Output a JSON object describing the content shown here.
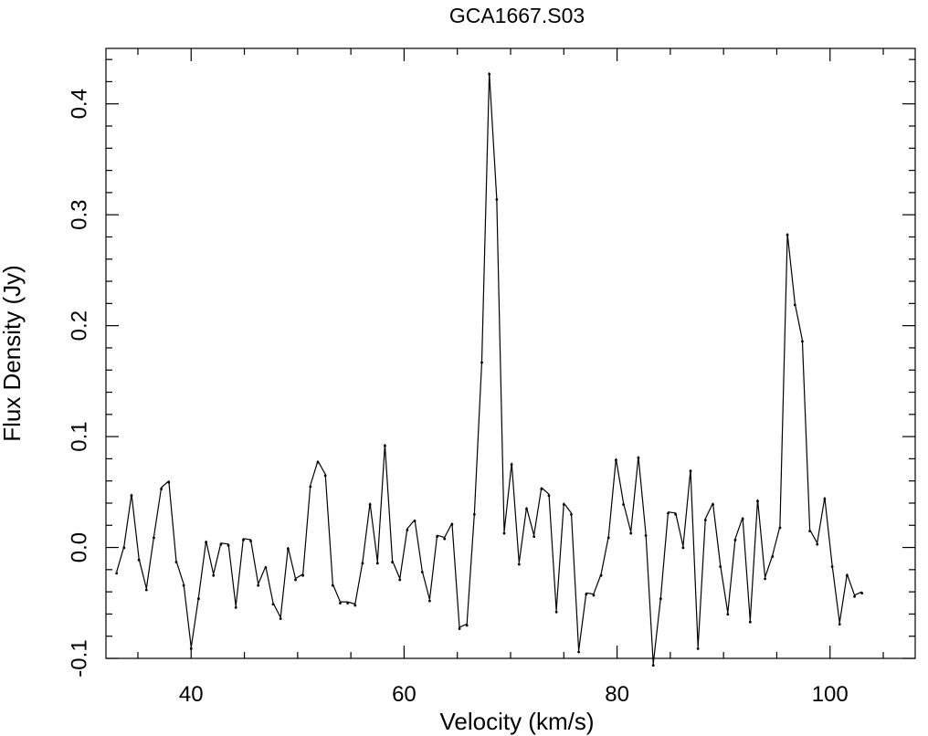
{
  "chart_data": {
    "type": "line",
    "title": "GCA1667.S03",
    "xlabel": "Velocity (km/s)",
    "ylabel": "Flux Density (Jy)",
    "xlim": [
      32,
      108
    ],
    "ylim": [
      -0.1,
      0.45
    ],
    "x_ticks": [
      40,
      60,
      80,
      100
    ],
    "x_tick_labels": [
      "40",
      "60",
      "80",
      "100"
    ],
    "y_ticks": [
      -0.1,
      0.0,
      0.1,
      0.2,
      0.3,
      0.4
    ],
    "y_tick_labels": [
      "-0.1",
      "0.0",
      "0.1",
      "0.2",
      "0.3",
      "0.4"
    ],
    "grid": false,
    "series": [
      {
        "x": [
          33.0,
          33.7,
          34.4,
          35.1,
          35.8,
          36.5,
          37.2,
          37.9,
          38.6,
          39.3,
          40.0,
          40.7,
          41.4,
          42.1,
          42.8,
          43.5,
          44.2,
          44.9,
          45.6,
          46.3,
          47.0,
          47.7,
          48.4,
          49.1,
          49.8,
          50.5,
          51.2,
          51.9,
          52.6,
          53.3,
          54.0,
          54.7,
          55.4,
          56.1,
          56.8,
          57.5,
          58.2,
          58.9,
          59.6,
          60.3,
          61.0,
          61.7,
          62.4,
          63.1,
          63.8,
          64.5,
          65.2,
          65.9,
          66.6,
          67.3,
          68.0,
          68.7,
          69.4,
          70.1,
          70.8,
          71.5,
          72.2,
          72.9,
          73.6,
          74.3,
          75.0,
          75.7,
          76.4,
          77.1,
          77.8,
          78.5,
          79.2,
          79.9,
          80.6,
          81.3,
          82.0,
          82.7,
          83.4,
          84.1,
          84.8,
          85.5,
          86.2,
          86.9,
          87.6,
          88.3,
          89.0,
          89.7,
          90.4,
          91.1,
          91.8,
          92.5,
          93.2,
          93.9,
          94.6,
          95.3,
          96.0,
          96.7,
          97.4,
          98.1,
          98.8,
          99.5,
          100.2,
          100.9,
          101.6,
          102.3,
          103.0
        ],
        "y": [
          -0.022,
          0.001,
          0.048,
          -0.01,
          -0.037,
          0.01,
          0.054,
          0.06,
          -0.012,
          -0.033,
          -0.09,
          -0.045,
          0.006,
          -0.024,
          0.004,
          0.003,
          -0.053,
          0.008,
          0.007,
          -0.033,
          -0.017,
          -0.05,
          -0.063,
          0.0,
          -0.028,
          -0.024,
          0.056,
          0.078,
          0.066,
          -0.033,
          -0.049,
          -0.049,
          -0.051,
          -0.013,
          0.04,
          -0.013,
          0.093,
          -0.012,
          -0.028,
          0.017,
          0.025,
          -0.021,
          -0.047,
          0.011,
          0.009,
          0.022,
          -0.072,
          -0.069,
          0.031,
          0.168,
          0.428,
          0.315,
          0.014,
          0.076,
          -0.014,
          0.036,
          0.011,
          0.054,
          0.048,
          -0.057,
          0.04,
          0.031,
          -0.093,
          -0.041,
          -0.042,
          -0.024,
          0.01,
          0.08,
          0.04,
          0.014,
          0.082,
          0.012,
          -0.105,
          -0.045,
          0.032,
          0.031,
          0.001,
          0.07,
          -0.09,
          0.026,
          0.04,
          -0.016,
          -0.059,
          0.008,
          0.027,
          -0.066,
          0.043,
          -0.027,
          -0.007,
          0.019,
          0.283,
          0.22,
          0.187,
          0.016,
          0.004,
          0.045,
          -0.016,
          -0.068,
          -0.024,
          -0.043,
          -0.04
        ]
      }
    ]
  }
}
